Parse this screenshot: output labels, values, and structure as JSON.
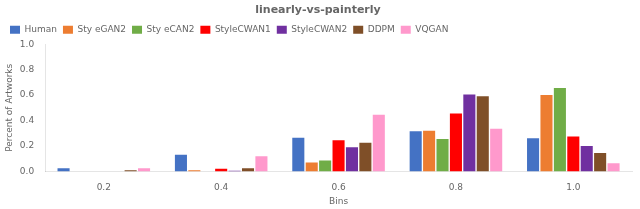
{
  "chart_data": {
    "type": "bar",
    "title": "linearly-vs-painterly",
    "xlabel": "Bins",
    "ylabel": "Percent of Artworks",
    "categories": [
      "0.2",
      "0.4",
      "0.6",
      "0.8",
      "1.0"
    ],
    "series": [
      {
        "name": "Human",
        "color": "#4472C4",
        "values": [
          0.025,
          0.13,
          0.265,
          0.315,
          0.26
        ]
      },
      {
        "name": "Sty eGAN2",
        "color": "#ED7D31",
        "values": [
          0.0,
          0.01,
          0.07,
          0.32,
          0.6
        ]
      },
      {
        "name": "Sty eCAN2",
        "color": "#70AD47",
        "values": [
          0.0,
          0.0,
          0.085,
          0.255,
          0.655
        ]
      },
      {
        "name": "StyleCWAN1",
        "color": "#FF0000",
        "values": [
          0.0,
          0.02,
          0.245,
          0.455,
          0.275
        ]
      },
      {
        "name": "StyleCWAN2",
        "color": "#7030A0",
        "values": [
          0.0,
          0.005,
          0.19,
          0.605,
          0.2
        ]
      },
      {
        "name": "DDPM",
        "color": "#7F4F28",
        "values": [
          0.01,
          0.025,
          0.225,
          0.59,
          0.145
        ]
      },
      {
        "name": "VQGAN",
        "color": "#FF99CC",
        "values": [
          0.025,
          0.12,
          0.445,
          0.335,
          0.065
        ]
      }
    ],
    "ylim": [
      0,
      1.0
    ],
    "yticks": [
      {
        "value": 0,
        "label": "0.0"
      },
      0.2,
      0.4,
      0.6,
      0.8,
      {
        "value": 1.0,
        "label": "1.0"
      }
    ],
    "grid": false,
    "legend": "upper left"
  }
}
